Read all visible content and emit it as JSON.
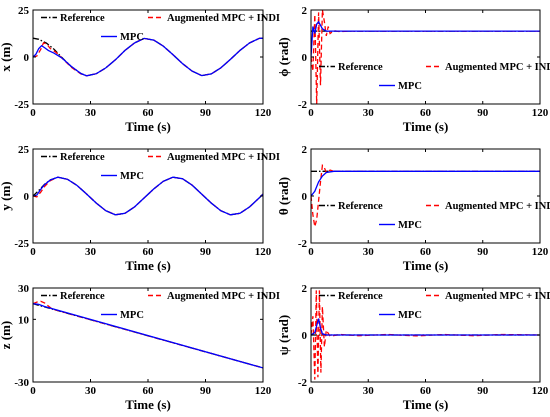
{
  "legend_labels": [
    "Reference",
    "Augmented MPC + INDI",
    "MPC"
  ],
  "colors": {
    "reference": "#000000",
    "augmented": "#ff0000",
    "mpc": "#0000ff"
  },
  "chart_data": [
    {
      "type": "line",
      "id": "x",
      "ylabel": "x (m)",
      "xlabel": "Time (s)",
      "xlim": [
        0,
        120
      ],
      "ylim": [
        -25,
        25
      ],
      "xticks": [
        0,
        30,
        60,
        90,
        120
      ],
      "yticks": [
        -25,
        0,
        25
      ],
      "grid": false,
      "legend_position": "top",
      "series": [
        {
          "name": "Reference",
          "style": "dashdot",
          "color": "#000000",
          "x": [
            0,
            3,
            7,
            11,
            15,
            20,
            25,
            28,
            33,
            38,
            43,
            48,
            53,
            58,
            63,
            68,
            73,
            78,
            83,
            88,
            93,
            98,
            103,
            108,
            113,
            118,
            120
          ],
          "y": [
            10,
            9.4,
            7.4,
            4.1,
            -0.2,
            -5.1,
            -8.8,
            -10,
            -8.9,
            -5.8,
            -1.5,
            3.5,
            7.5,
            9.9,
            9.0,
            5.8,
            1.3,
            -3.5,
            -7.5,
            -9.9,
            -9.0,
            -5.8,
            -1.3,
            3.5,
            7.5,
            9.9,
            10
          ]
        },
        {
          "name": "Augmented MPC + INDI",
          "style": "dashed",
          "color": "#ff0000",
          "x": [
            0,
            2,
            4,
            5.5,
            7,
            9,
            12,
            16,
            20,
            25,
            28,
            33,
            38,
            43,
            48,
            53,
            58,
            63,
            68,
            73,
            78,
            83,
            88,
            93,
            98,
            103,
            108,
            113,
            118,
            120
          ],
          "y": [
            0,
            0.5,
            4,
            7.5,
            7.0,
            4.5,
            2.5,
            -1.5,
            -5.5,
            -9.0,
            -10,
            -8.9,
            -5.8,
            -1.5,
            3.5,
            7.5,
            9.9,
            9.0,
            5.8,
            1.3,
            -3.5,
            -7.5,
            -9.9,
            -9.0,
            -5.8,
            -1.3,
            3.5,
            7.5,
            9.9,
            10
          ]
        },
        {
          "name": "MPC",
          "style": "solid",
          "color": "#0000ff",
          "x": [
            0,
            1.5,
            3,
            4.5,
            6,
            8,
            11,
            15,
            20,
            25,
            28,
            33,
            38,
            43,
            48,
            53,
            58,
            63,
            68,
            73,
            78,
            83,
            88,
            93,
            98,
            103,
            108,
            113,
            118,
            120
          ],
          "y": [
            0,
            1.5,
            4.5,
            6.0,
            5.0,
            3.5,
            2.0,
            -0.5,
            -5.0,
            -8.8,
            -10,
            -8.9,
            -5.8,
            -1.5,
            3.5,
            7.5,
            9.9,
            9.0,
            5.8,
            1.3,
            -3.5,
            -7.5,
            -9.9,
            -9.0,
            -5.8,
            -1.3,
            3.5,
            7.5,
            9.9,
            10
          ]
        }
      ]
    },
    {
      "type": "line",
      "id": "phi",
      "ylabel": "ϕ (rad)",
      "xlabel": "Time (s)",
      "xlim": [
        0,
        120
      ],
      "ylim": [
        -2,
        2
      ],
      "xticks": [
        0,
        30,
        60,
        90,
        120
      ],
      "yticks": [
        -2,
        0,
        2
      ],
      "grid": false,
      "legend_position": "center",
      "series": [
        {
          "name": "Reference",
          "style": "dashdot",
          "color": "#000000",
          "x": [
            0,
            120
          ],
          "y": [
            1.1,
            1.1
          ]
        },
        {
          "name": "Augmented MPC + INDI",
          "style": "dashed",
          "color": "#ff0000",
          "x": [
            0,
            1,
            2,
            3,
            4,
            5,
            6,
            7,
            8,
            9,
            10,
            12,
            15,
            20,
            120
          ],
          "y": [
            0,
            -0.6,
            1.8,
            -2.0,
            1.9,
            -1.2,
            2.0,
            1.5,
            0.9,
            1.3,
            1.0,
            1.12,
            1.08,
            1.1,
            1.1
          ]
        },
        {
          "name": "MPC",
          "style": "solid",
          "color": "#0000ff",
          "x": [
            0,
            1,
            2,
            3,
            4,
            6,
            8,
            10,
            120
          ],
          "y": [
            0,
            1.3,
            1.0,
            1.4,
            1.5,
            1.2,
            1.1,
            1.1,
            1.1
          ]
        }
      ]
    },
    {
      "type": "line",
      "id": "y",
      "ylabel": "y (m)",
      "xlabel": "Time (s)",
      "xlim": [
        0,
        120
      ],
      "ylim": [
        -25,
        25
      ],
      "xticks": [
        0,
        30,
        60,
        90,
        120
      ],
      "yticks": [
        -25,
        0,
        25
      ],
      "grid": false,
      "legend_position": "top",
      "series": [
        {
          "name": "Reference",
          "style": "dashdot",
          "color": "#000000",
          "x": [
            0,
            3,
            6,
            9,
            13,
            18,
            23,
            28,
            33,
            38,
            43,
            48,
            53,
            58,
            63,
            68,
            73,
            78,
            83,
            88,
            93,
            98,
            103,
            108,
            113,
            118,
            120
          ],
          "y": [
            0,
            3.0,
            6.2,
            8.5,
            10,
            8.9,
            5.6,
            1.0,
            -3.8,
            -7.8,
            -10,
            -9.2,
            -5.8,
            -1.0,
            3.8,
            7.8,
            10,
            9.2,
            5.8,
            1.0,
            -3.8,
            -7.8,
            -10,
            -9.2,
            -5.8,
            -1.0,
            1.0
          ]
        },
        {
          "name": "Augmented MPC + INDI",
          "style": "dashed",
          "color": "#ff0000",
          "x": [
            0,
            2,
            4,
            6,
            9,
            13,
            18,
            23,
            28,
            33,
            38,
            43,
            48,
            53,
            58,
            63,
            68,
            73,
            78,
            83,
            88,
            93,
            98,
            103,
            108,
            113,
            118,
            120
          ],
          "y": [
            0,
            -0.5,
            2.0,
            5.0,
            8.2,
            10,
            8.9,
            5.6,
            1.0,
            -3.8,
            -7.8,
            -10,
            -9.2,
            -5.8,
            -1.0,
            3.8,
            7.8,
            10,
            9.2,
            5.8,
            1.0,
            -3.8,
            -7.8,
            -10,
            -9.2,
            -5.8,
            -1.0,
            1.0
          ]
        },
        {
          "name": "MPC",
          "style": "solid",
          "color": "#0000ff",
          "x": [
            0,
            2,
            4,
            6,
            9,
            13,
            18,
            23,
            28,
            33,
            38,
            43,
            48,
            53,
            58,
            63,
            68,
            73,
            78,
            83,
            88,
            93,
            98,
            103,
            108,
            113,
            118,
            120
          ],
          "y": [
            0,
            0.5,
            3.5,
            6.0,
            8.5,
            10,
            8.9,
            5.6,
            1.0,
            -3.8,
            -7.8,
            -10,
            -9.2,
            -5.8,
            -1.0,
            3.8,
            7.8,
            10,
            9.2,
            5.8,
            1.0,
            -3.8,
            -7.8,
            -10,
            -9.2,
            -5.8,
            -1.0,
            1.0
          ]
        }
      ]
    },
    {
      "type": "line",
      "id": "theta",
      "ylabel": "θ (rad)",
      "xlabel": "Time (s)",
      "xlim": [
        0,
        120
      ],
      "ylim": [
        -2,
        2
      ],
      "xticks": [
        0,
        30,
        60,
        90,
        120
      ],
      "yticks": [
        -2,
        0,
        2
      ],
      "grid": false,
      "legend_position": "center",
      "series": [
        {
          "name": "Reference",
          "style": "dashdot",
          "color": "#000000",
          "x": [
            0,
            120
          ],
          "y": [
            1.05,
            1.05
          ]
        },
        {
          "name": "Augmented MPC + INDI",
          "style": "dashed",
          "color": "#ff0000",
          "x": [
            0,
            1,
            2,
            3,
            4,
            5,
            6,
            7,
            8,
            10,
            12,
            15,
            120
          ],
          "y": [
            0,
            -0.8,
            -1.3,
            -1.0,
            -0.2,
            0.6,
            1.3,
            1.2,
            1.0,
            1.1,
            1.05,
            1.05,
            1.05
          ]
        },
        {
          "name": "MPC",
          "style": "solid",
          "color": "#0000ff",
          "x": [
            0,
            2,
            4,
            6,
            8,
            12,
            120
          ],
          "y": [
            0,
            0.2,
            0.6,
            0.85,
            1.0,
            1.05,
            1.05
          ]
        }
      ]
    },
    {
      "type": "line",
      "id": "z",
      "ylabel": "z (m)",
      "xlabel": "Time (s)",
      "xlim": [
        0,
        120
      ],
      "ylim": [
        -30,
        30
      ],
      "xticks": [
        0,
        30,
        60,
        90,
        120
      ],
      "yticks": [
        -30,
        10,
        30
      ],
      "grid": false,
      "legend_position": "top",
      "series": [
        {
          "name": "Reference",
          "style": "dashdot",
          "color": "#000000",
          "x": [
            0,
            120
          ],
          "y": [
            20,
            -21
          ]
        },
        {
          "name": "Augmented MPC + INDI",
          "style": "dashed",
          "color": "#ff0000",
          "x": [
            0,
            2,
            4,
            6,
            8,
            10,
            120
          ],
          "y": [
            20,
            21,
            21.5,
            20.5,
            18.5,
            16.6,
            -21
          ]
        },
        {
          "name": "MPC",
          "style": "solid",
          "color": "#0000ff",
          "x": [
            0,
            3,
            6,
            120
          ],
          "y": [
            20,
            19.5,
            18.2,
            -21
          ]
        }
      ]
    },
    {
      "type": "line",
      "id": "psi",
      "ylabel": "ψ (rad)",
      "xlabel": "Time (s)",
      "xlim": [
        0,
        120
      ],
      "ylim": [
        -2,
        2
      ],
      "xticks": [
        0,
        30,
        60,
        90,
        120
      ],
      "yticks": [
        -2,
        0,
        2
      ],
      "grid": false,
      "legend_position": "top",
      "series": [
        {
          "name": "Reference",
          "style": "dashdot",
          "color": "#000000",
          "x": [
            0,
            120
          ],
          "y": [
            0,
            0
          ]
        },
        {
          "name": "Augmented MPC + INDI",
          "style": "dashed",
          "color": "#ff0000",
          "x": [
            0,
            1,
            2,
            2.8,
            3.6,
            4.4,
            5.2,
            6,
            7,
            8,
            10,
            15,
            25,
            40,
            55,
            70,
            85,
            100,
            120
          ],
          "y": [
            0,
            0.8,
            -1.9,
            1.9,
            -1.8,
            1.9,
            -1.6,
            1.2,
            -0.5,
            0.2,
            -0.05,
            0.02,
            -0.03,
            0.02,
            -0.04,
            0.02,
            -0.03,
            0.02,
            0
          ]
        },
        {
          "name": "MPC",
          "style": "solid",
          "color": "#0000ff",
          "x": [
            0,
            2,
            3,
            4,
            5,
            6,
            8,
            120
          ],
          "y": [
            0,
            0.1,
            0.4,
            0.7,
            0.3,
            0.05,
            0,
            0
          ]
        }
      ]
    }
  ]
}
